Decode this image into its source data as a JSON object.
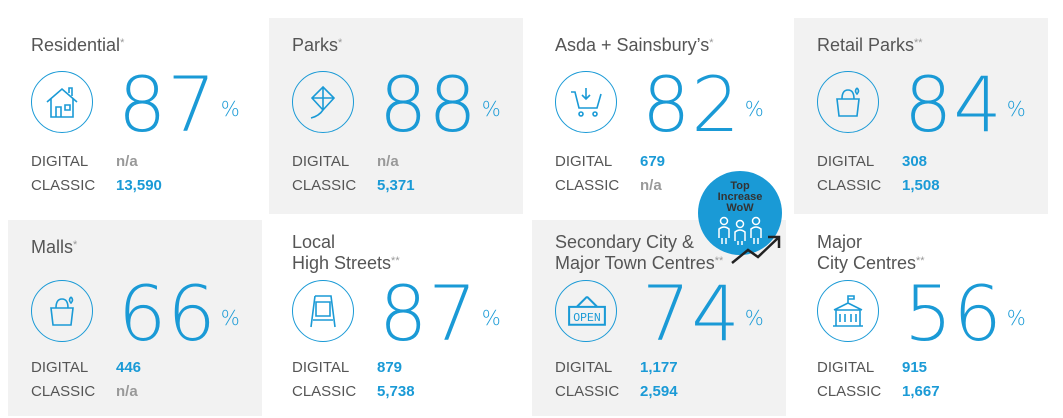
{
  "cards": [
    {
      "title": "Residential",
      "mark": "*",
      "icon": "house-icon",
      "percent": "87",
      "pct_sign": "%",
      "digital_label": "DIGITAL",
      "digital": "n/a",
      "classic_label": "CLASSIC",
      "classic": "13,590"
    },
    {
      "title": "Parks",
      "mark": "*",
      "icon": "kite-icon",
      "percent": "88",
      "pct_sign": "%",
      "digital_label": "DIGITAL",
      "digital": "n/a",
      "classic_label": "CLASSIC",
      "classic": "5,371"
    },
    {
      "title": "Asda + Sainsbury’s",
      "mark": "*",
      "icon": "shopping-cart-icon",
      "percent": "82",
      "pct_sign": "%",
      "digital_label": "DIGITAL",
      "digital": "679",
      "classic_label": "CLASSIC",
      "classic": "n/a"
    },
    {
      "title": "Retail Parks",
      "mark": "**",
      "icon": "shopping-bag-icon",
      "percent": "84",
      "pct_sign": "%",
      "digital_label": "DIGITAL",
      "digital": "308",
      "classic_label": "CLASSIC",
      "classic": "1,508"
    },
    {
      "title": "Malls",
      "mark": "*",
      "icon": "shopping-bag-icon",
      "percent": "66",
      "pct_sign": "%",
      "digital_label": "DIGITAL",
      "digital": "446",
      "classic_label": "CLASSIC",
      "classic": "n/a"
    },
    {
      "title": "Local",
      "title2": "High Streets",
      "mark": "**",
      "icon": "a-board-sign-icon",
      "percent": "87",
      "pct_sign": "%",
      "digital_label": "DIGITAL",
      "digital": "879",
      "classic_label": "CLASSIC",
      "classic": "5,738"
    },
    {
      "title": "Secondary City &",
      "title2": "Major Town Centres",
      "mark": "**",
      "icon": "open-sign-icon",
      "open_text": "OPEN",
      "percent": "74",
      "pct_sign": "%",
      "digital_label": "DIGITAL",
      "digital": "1,177",
      "classic_label": "CLASSIC",
      "classic": "2,594"
    },
    {
      "title": "Major",
      "title2": "City Centres",
      "mark": "**",
      "icon": "town-hall-icon",
      "percent": "56",
      "pct_sign": "%",
      "digital_label": "DIGITAL",
      "digital": "915",
      "classic_label": "CLASSIC",
      "classic": "1,667"
    }
  ],
  "badge": {
    "line1": "Top",
    "line2": "Increase",
    "line3": "WoW",
    "color": "#1a9ad6"
  }
}
